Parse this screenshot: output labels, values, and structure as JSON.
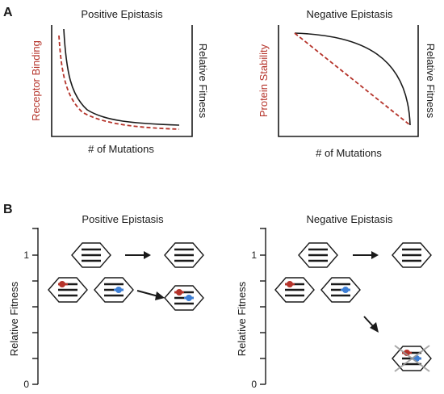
{
  "panel_a": {
    "label": "A",
    "left": {
      "title": "Positive Epistasis",
      "y_left_label": "Receptor Binding",
      "y_right_label": "Relative Fitness",
      "x_label": "# of Mutations"
    },
    "right": {
      "title": "Negative Epistasis",
      "y_left_label": "Protein Stability",
      "y_right_label": "Relative Fitness",
      "x_label": "# of Mutations"
    }
  },
  "panel_b": {
    "label": "B",
    "left": {
      "title": "Positive Epistasis",
      "y_label": "Relative Fitness",
      "tick_top": "1",
      "tick_bottom": "0"
    },
    "right": {
      "title": "Negative Epistasis",
      "y_label": "Relative Fitness",
      "tick_top": "1",
      "tick_bottom": "0"
    }
  },
  "colors": {
    "axis": "#1a1a1a",
    "accent_red": "#b5332a",
    "mutation_red": "#b5332a",
    "mutation_blue": "#3d7fd6",
    "gray_cross": "#9a9a9a"
  }
}
